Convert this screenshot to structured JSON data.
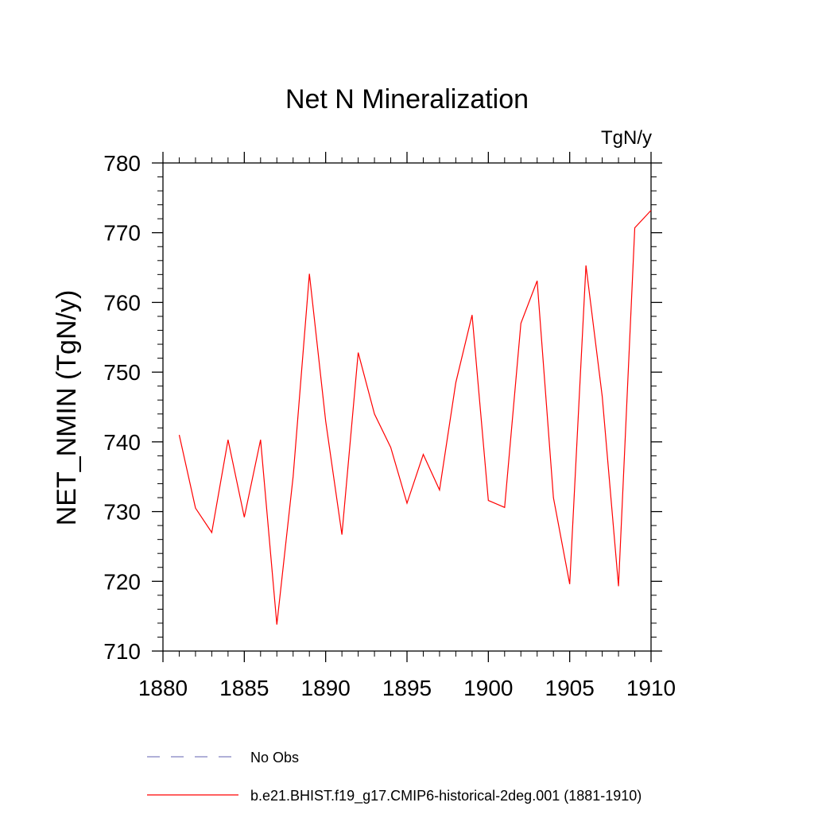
{
  "chart_data": {
    "type": "line",
    "title": "Net N Mineralization",
    "units": "TgN/y",
    "xlabel": "",
    "ylabel": "NET_NMIN  (TgN/y)",
    "xlim": [
      1880,
      1910
    ],
    "ylim": [
      710,
      780
    ],
    "xticks": [
      1880,
      1885,
      1890,
      1895,
      1900,
      1905,
      1910
    ],
    "yticks": [
      710,
      720,
      730,
      740,
      750,
      760,
      770,
      780
    ],
    "grid": false,
    "legend_position": "bottom",
    "series": [
      {
        "name": "No Obs",
        "color": "#8080c0",
        "dash": "dashed",
        "x": [],
        "values": []
      },
      {
        "name": "b.e21.BHIST.f19_g17.CMIP6-historical-2deg.001 (1881-1910)",
        "color": "#ff0000",
        "dash": "solid",
        "x": [
          1881,
          1882,
          1883,
          1884,
          1885,
          1886,
          1887,
          1888,
          1889,
          1890,
          1891,
          1892,
          1893,
          1894,
          1895,
          1896,
          1897,
          1898,
          1899,
          1900,
          1901,
          1902,
          1903,
          1904,
          1905,
          1906,
          1907,
          1908,
          1909,
          1910
        ],
        "values": [
          741.0,
          730.5,
          727.0,
          740.3,
          729.2,
          740.3,
          713.8,
          735.0,
          764.1,
          743.0,
          726.7,
          752.8,
          744.0,
          739.2,
          731.2,
          738.2,
          733.1,
          748.5,
          758.2,
          731.6,
          730.6,
          757.0,
          763.1,
          732.0,
          719.6,
          765.3,
          746.5,
          719.3,
          770.7,
          773.2
        ]
      }
    ]
  }
}
